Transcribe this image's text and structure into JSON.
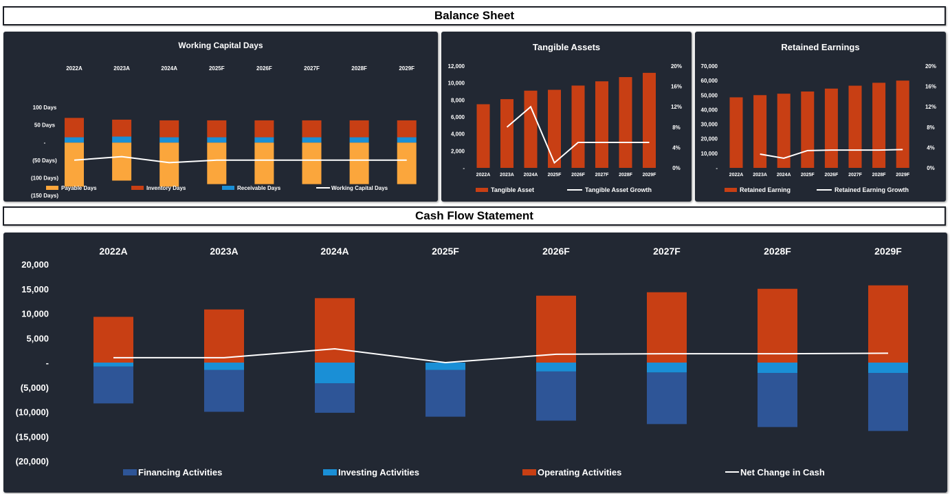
{
  "sections": {
    "balance_sheet_title": "Balance Sheet",
    "cash_flow_title": "Cash Flow Statement"
  },
  "colors": {
    "panel_bg": "#222833",
    "payable": "#FBA63C",
    "inventory": "#C83F14",
    "receivable": "#1A8FD6",
    "line": "#FFFFFF",
    "financing": "#2E5597",
    "investing": "#1A8FD6",
    "operating": "#C83F14"
  },
  "chart_data": [
    {
      "id": "wc",
      "type": "bar",
      "title": "Working Capital Days",
      "categories": [
        "2022A",
        "2023A",
        "2024A",
        "2025F",
        "2026F",
        "2027F",
        "2028F",
        "2029F"
      ],
      "y_tick_labels": [
        "100 Days",
        "50 Days",
        "-",
        "(50 Days)",
        "(100 Days)",
        "(150 Days)"
      ],
      "y_ticks": [
        100,
        50,
        0,
        -50,
        -100,
        -150
      ],
      "ylim": [
        -150,
        100
      ],
      "series": [
        {
          "name": "Payable Days",
          "values": [
            -125,
            -108,
            -125,
            -118,
            -118,
            -118,
            -118,
            -118
          ]
        },
        {
          "name": "Inventory Days",
          "values": [
            55,
            48,
            48,
            48,
            48,
            48,
            48,
            48
          ]
        },
        {
          "name": "Receivable Days",
          "values": [
            15,
            17,
            15,
            15,
            15,
            15,
            15,
            15
          ]
        },
        {
          "name": "Working Capital Days",
          "values": [
            -50,
            -40,
            -57,
            -50,
            -50,
            -50,
            -50,
            -50
          ]
        }
      ],
      "legend": [
        "Payable Days",
        "Inventory Days",
        "Receivable Days",
        "Working Capital Days"
      ]
    },
    {
      "id": "ta",
      "type": "bar",
      "title": "Tangible Assets",
      "categories": [
        "2022A",
        "2023A",
        "2024A",
        "2025F",
        "2026F",
        "2027F",
        "2028F",
        "2029F"
      ],
      "y_tick_labels": [
        "12,000",
        "10,000",
        "8,000",
        "6,000",
        "4,000",
        "2,000",
        "-"
      ],
      "y_ticks": [
        12000,
        10000,
        8000,
        6000,
        4000,
        2000,
        0
      ],
      "ylim": [
        0,
        12000
      ],
      "y2_tick_labels": [
        "20%",
        "16%",
        "12%",
        "8%",
        "4%",
        "0%"
      ],
      "y2_ticks": [
        20,
        16,
        12,
        8,
        4,
        0
      ],
      "y2lim": [
        0,
        20
      ],
      "series": [
        {
          "name": "Tangible Asset",
          "values": [
            7500,
            8100,
            9100,
            9200,
            9700,
            10200,
            10700,
            11200
          ]
        },
        {
          "name": "Tangible Asset Growth",
          "values": [
            null,
            8,
            12,
            1,
            5,
            5,
            5,
            5
          ]
        }
      ],
      "legend": [
        "Tangible Asset",
        "Tangible Asset Growth"
      ]
    },
    {
      "id": "re",
      "type": "bar",
      "title": "Retained Earnings",
      "categories": [
        "2022A",
        "2023A",
        "2024A",
        "2025F",
        "2026F",
        "2027F",
        "2028F",
        "2029F"
      ],
      "y_tick_labels": [
        "70,000",
        "60,000",
        "50,000",
        "40,000",
        "30,000",
        "20,000",
        "10,000",
        "-"
      ],
      "y_ticks": [
        70000,
        60000,
        50000,
        40000,
        30000,
        20000,
        10000,
        0
      ],
      "ylim": [
        0,
        70000
      ],
      "y2_tick_labels": [
        "20%",
        "16%",
        "12%",
        "8%",
        "4%",
        "0%"
      ],
      "y2_ticks": [
        20,
        16,
        12,
        8,
        4,
        0
      ],
      "y2lim": [
        0,
        20
      ],
      "series": [
        {
          "name": "Retained Earning",
          "values": [
            48500,
            50000,
            51000,
            52500,
            54500,
            56500,
            58500,
            60000
          ]
        },
        {
          "name": "Retained Earning Growth",
          "values": [
            null,
            2.7,
            1.9,
            3.4,
            3.5,
            3.5,
            3.5,
            3.6
          ]
        }
      ],
      "legend": [
        "Retained Earning",
        "Retained Earning Growth"
      ]
    },
    {
      "id": "cf",
      "type": "bar",
      "title": "Cash Flow Statement",
      "categories": [
        "2022A",
        "2023A",
        "2024A",
        "2025F",
        "2026F",
        "2027F",
        "2028F",
        "2029F"
      ],
      "y_tick_labels": [
        "20,000",
        "15,000",
        "10,000",
        "5,000",
        "-",
        "(5,000)",
        "(10,000)",
        "(15,000)",
        "(20,000)"
      ],
      "y_ticks": [
        20000,
        15000,
        10000,
        5000,
        0,
        -5000,
        -10000,
        -15000,
        -20000
      ],
      "ylim": [
        -20000,
        20000
      ],
      "series": [
        {
          "name": "Financing Activities",
          "values": [
            -7500,
            -8500,
            -6000,
            -9500,
            -10000,
            -10500,
            -11000,
            -11800
          ]
        },
        {
          "name": "Investing Activities",
          "values": [
            -800,
            -1500,
            -4200,
            -1500,
            -1800,
            -2000,
            -2100,
            -2100
          ]
        },
        {
          "name": "Operating Activities",
          "values": [
            9300,
            10800,
            13100,
            0,
            13600,
            14300,
            15000,
            15700
          ]
        },
        {
          "name": "Net Change in Cash",
          "values": [
            1000,
            1000,
            2800,
            0,
            1700,
            1800,
            1800,
            1900
          ]
        }
      ],
      "legend": [
        "Financing Activities",
        "Investing Activities",
        "Operating Activities",
        "Net Change in Cash"
      ]
    }
  ]
}
